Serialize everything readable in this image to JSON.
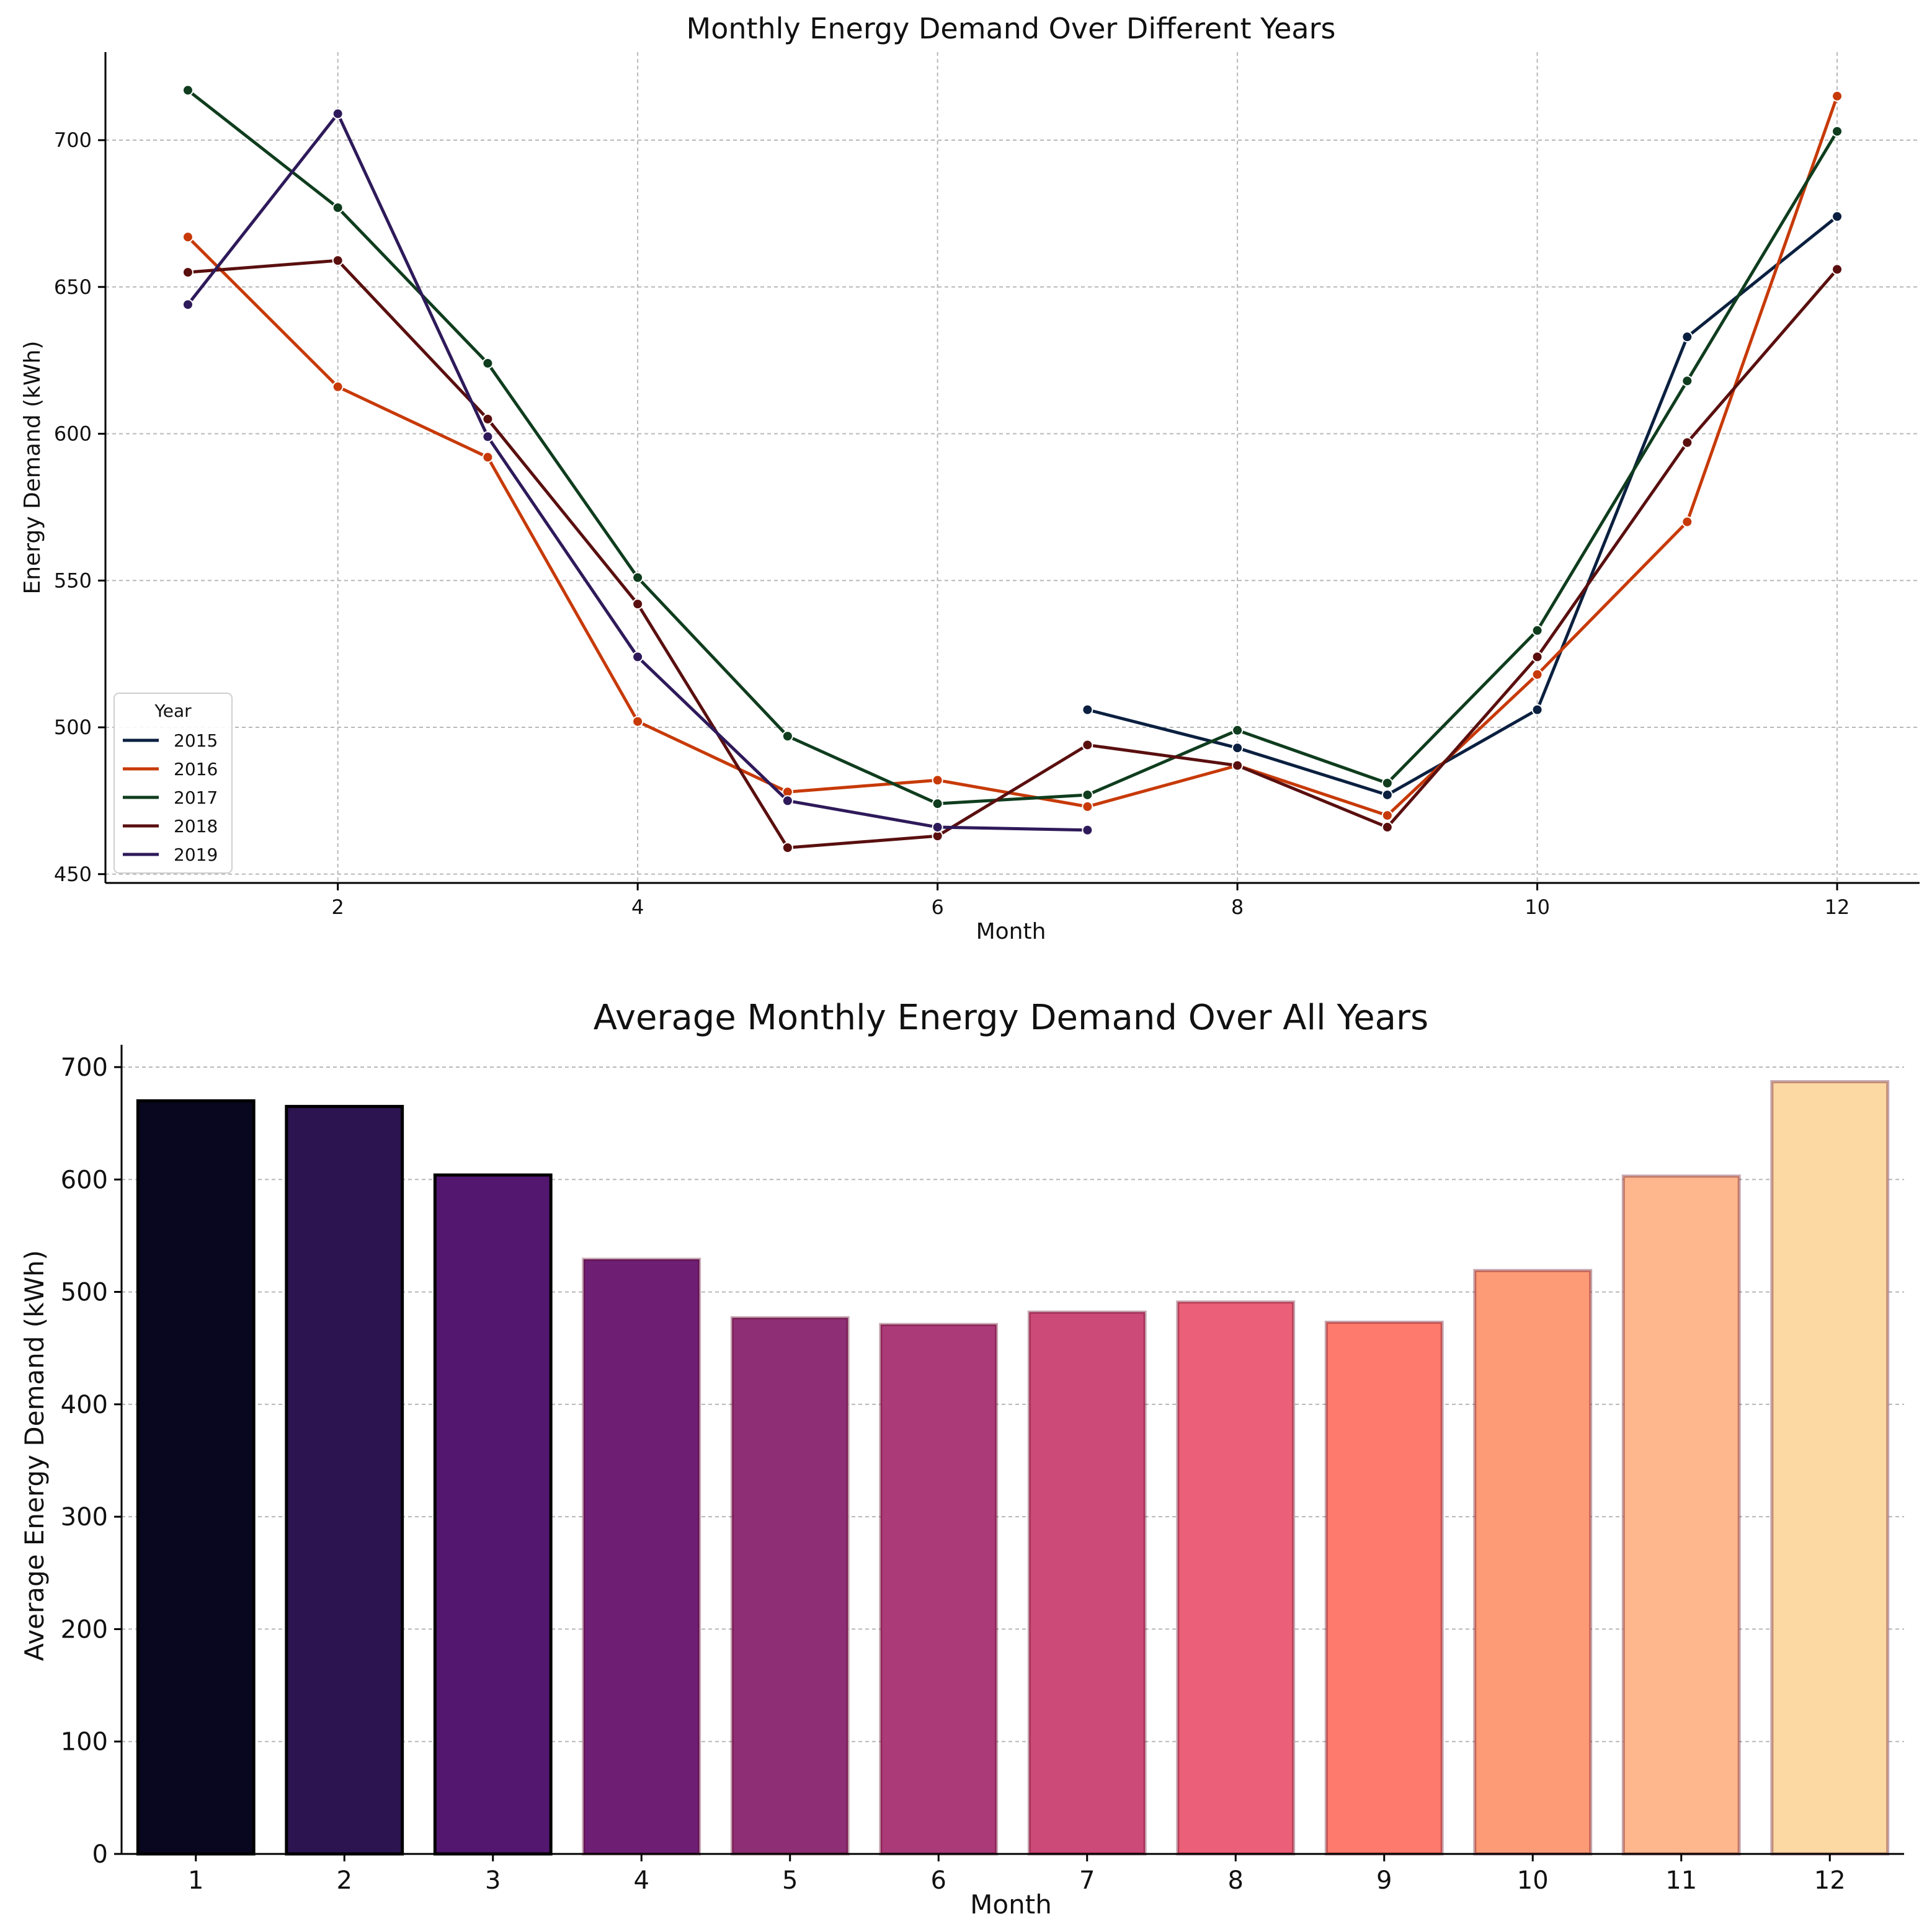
{
  "chart_data": [
    {
      "type": "line",
      "title": "Monthly Energy Demand Over Different Years",
      "xlabel": "Month",
      "ylabel": "Energy Demand (kWh)",
      "xlim": [
        0.45,
        12.55
      ],
      "ylim": [
        447,
        730
      ],
      "xticks": [
        2,
        4,
        6,
        8,
        10,
        12
      ],
      "yticks": [
        450,
        500,
        550,
        600,
        650,
        700
      ],
      "grid": true,
      "legend_title": "Year",
      "legend_position": "lower-left",
      "series": [
        {
          "name": "2015",
          "color": "#0b2040",
          "x": [
            7,
            8,
            9,
            10,
            11,
            12
          ],
          "values": [
            506,
            493,
            477,
            506,
            633,
            674
          ]
        },
        {
          "name": "2016",
          "color": "#c73a08",
          "x": [
            1,
            2,
            3,
            4,
            5,
            6,
            7,
            8,
            9,
            10,
            11,
            12
          ],
          "values": [
            667,
            616,
            592,
            502,
            478,
            482,
            473,
            487,
            470,
            518,
            570,
            715
          ]
        },
        {
          "name": "2017",
          "color": "#0f3d1e",
          "x": [
            1,
            2,
            3,
            4,
            5,
            6,
            7,
            8,
            9,
            10,
            11,
            12
          ],
          "values": [
            717,
            677,
            624,
            551,
            497,
            474,
            477,
            499,
            481,
            533,
            618,
            703
          ]
        },
        {
          "name": "2018",
          "color": "#5a0f0f",
          "x": [
            1,
            2,
            3,
            4,
            5,
            6,
            7,
            8,
            9,
            10,
            11,
            12
          ],
          "values": [
            655,
            659,
            605,
            542,
            459,
            463,
            494,
            487,
            466,
            524,
            597,
            656
          ]
        },
        {
          "name": "2019",
          "color": "#2e1a5a",
          "x": [
            1,
            2,
            3,
            4,
            5,
            6,
            7
          ],
          "values": [
            644,
            709,
            599,
            524,
            475,
            466,
            465
          ]
        }
      ]
    },
    {
      "type": "bar",
      "title": "Average Monthly Energy Demand Over All Years",
      "xlabel": "Month",
      "ylabel": "Average Energy Demand (kWh)",
      "ylim": [
        0,
        700
      ],
      "yticks": [
        0,
        100,
        200,
        300,
        400,
        500,
        600,
        700
      ],
      "grid": true,
      "categories": [
        "1",
        "2",
        "3",
        "4",
        "5",
        "6",
        "7",
        "8",
        "9",
        "10",
        "11",
        "12"
      ],
      "values": [
        670,
        665,
        604,
        529,
        477,
        471,
        482,
        491,
        473,
        519,
        603,
        687
      ],
      "colors": [
        "#08071f",
        "#2b1450",
        "#531770",
        "#6e1f74",
        "#8e2e74",
        "#ab3a78",
        "#cc4a77",
        "#eb6078",
        "#fd7a6c",
        "#fe9b77",
        "#feb78c",
        "#fcd8a3"
      ]
    }
  ]
}
